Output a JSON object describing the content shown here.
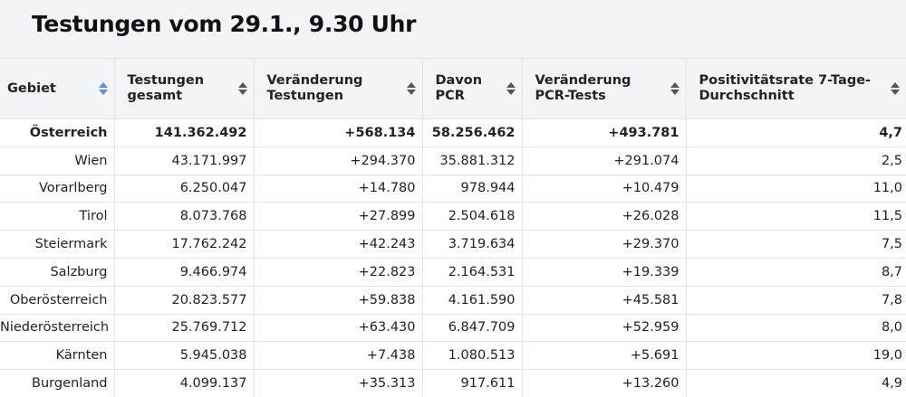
{
  "title": "Testungen vom 29.1., 9.30 Uhr",
  "colors": {
    "header_bg": "#f3f4f7",
    "sort_active": "#5b8fd8",
    "sort_inactive": "#555555"
  },
  "columns": [
    {
      "label": "Gebiet",
      "sort_icon": "sort-icon",
      "active": true
    },
    {
      "label": "Testungen gesamt",
      "sort_icon": "sort-icon"
    },
    {
      "label": "Veränderung Testungen",
      "sort_icon": "sort-icon"
    },
    {
      "label": "Davon PCR",
      "sort_icon": "sort-icon"
    },
    {
      "label": "Veränderung PCR-Tests",
      "sort_icon": "sort-icon"
    },
    {
      "label": "Positivitätsrate 7-Tage-Durchschnitt",
      "sort_icon": "sort-icon"
    }
  ],
  "rows": [
    [
      "Österreich",
      "141.362.492",
      "+568.134",
      "58.256.462",
      "+493.781",
      "4,7"
    ],
    [
      "Wien",
      "43.171.997",
      "+294.370",
      "35.881.312",
      "+291.074",
      "2,5"
    ],
    [
      "Vorarlberg",
      "6.250.047",
      "+14.780",
      "978.944",
      "+10.479",
      "11,0"
    ],
    [
      "Tirol",
      "8.073.768",
      "+27.899",
      "2.504.618",
      "+26.028",
      "11,5"
    ],
    [
      "Steiermark",
      "17.762.242",
      "+42.243",
      "3.719.634",
      "+29.370",
      "7,5"
    ],
    [
      "Salzburg",
      "9.466.974",
      "+22.823",
      "2.164.531",
      "+19.339",
      "8,7"
    ],
    [
      "Oberösterreich",
      "20.823.577",
      "+59.838",
      "4.161.590",
      "+45.581",
      "7,8"
    ],
    [
      "Niederösterreich",
      "25.769.712",
      "+63.430",
      "6.847.709",
      "+52.959",
      "8,0"
    ],
    [
      "Kärnten",
      "5.945.038",
      "+7.438",
      "1.080.513",
      "+5.691",
      "19,0"
    ],
    [
      "Burgenland",
      "4.099.137",
      "+35.313",
      "917.611",
      "+13.260",
      "4,9"
    ]
  ]
}
